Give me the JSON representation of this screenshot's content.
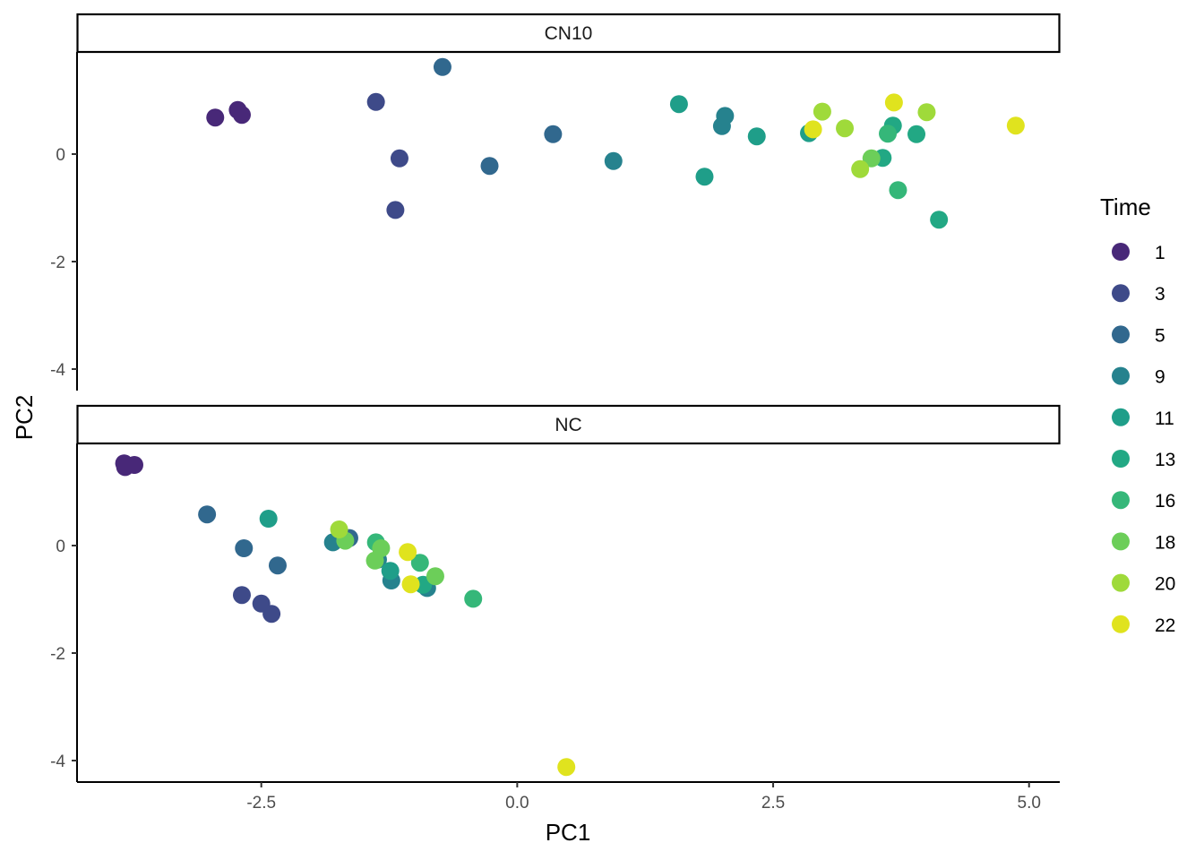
{
  "chart_data": {
    "type": "scatter",
    "xlabel": "PC1",
    "ylabel": "PC2",
    "xlim": [
      -4.3,
      5.3
    ],
    "ylim": [
      -4.4,
      1.9
    ],
    "x_ticks": [
      {
        "value": -2.5,
        "label": "-2.5"
      },
      {
        "value": 0,
        "label": "0.0"
      },
      {
        "value": 2.5,
        "label": "2.5"
      },
      {
        "value": 5,
        "label": "5.0"
      }
    ],
    "y_ticks": [
      {
        "value": 0,
        "label": "0"
      },
      {
        "value": -2,
        "label": "-2"
      },
      {
        "value": -4,
        "label": "-4"
      }
    ],
    "legend": {
      "title": "Time",
      "position": "right",
      "levels": [
        {
          "label": "1",
          "color": "#482878"
        },
        {
          "label": "3",
          "color": "#3E4A89"
        },
        {
          "label": "5",
          "color": "#31688E"
        },
        {
          "label": "9",
          "color": "#26828E"
        },
        {
          "label": "11",
          "color": "#1F9E89"
        },
        {
          "label": "13",
          "color": "#22A884"
        },
        {
          "label": "16",
          "color": "#35B779"
        },
        {
          "label": "18",
          "color": "#6CCE59"
        },
        {
          "label": "20",
          "color": "#9FDA3A"
        },
        {
          "label": "22",
          "color": "#E0E31E"
        }
      ]
    },
    "panels": [
      {
        "label": "CN10",
        "points": [
          {
            "x": -2.95,
            "y": 0.68,
            "time": "1"
          },
          {
            "x": -2.73,
            "y": 0.82,
            "time": "1"
          },
          {
            "x": -2.69,
            "y": 0.73,
            "time": "1"
          },
          {
            "x": -1.38,
            "y": 0.97,
            "time": "3"
          },
          {
            "x": -1.15,
            "y": -0.08,
            "time": "3"
          },
          {
            "x": -1.19,
            "y": -1.04,
            "time": "3"
          },
          {
            "x": -0.73,
            "y": 1.62,
            "time": "5"
          },
          {
            "x": -0.27,
            "y": -0.22,
            "time": "5"
          },
          {
            "x": 0.35,
            "y": 0.37,
            "time": "5"
          },
          {
            "x": 0.94,
            "y": -0.13,
            "time": "9"
          },
          {
            "x": 2.0,
            "y": 0.52,
            "time": "9"
          },
          {
            "x": 2.03,
            "y": 0.71,
            "time": "9"
          },
          {
            "x": 1.58,
            "y": 0.93,
            "time": "11"
          },
          {
            "x": 2.34,
            "y": 0.33,
            "time": "11"
          },
          {
            "x": 1.83,
            "y": -0.42,
            "time": "11"
          },
          {
            "x": 2.85,
            "y": 0.39,
            "time": "11"
          },
          {
            "x": 3.57,
            "y": -0.07,
            "time": "13"
          },
          {
            "x": 3.67,
            "y": 0.53,
            "time": "13"
          },
          {
            "x": 3.9,
            "y": 0.37,
            "time": "13"
          },
          {
            "x": 4.12,
            "y": -1.22,
            "time": "13"
          },
          {
            "x": 3.72,
            "y": -0.67,
            "time": "16"
          },
          {
            "x": 3.62,
            "y": 0.38,
            "time": "16"
          },
          {
            "x": 3.46,
            "y": -0.08,
            "time": "18"
          },
          {
            "x": 2.98,
            "y": 0.79,
            "time": "20"
          },
          {
            "x": 3.2,
            "y": 0.48,
            "time": "20"
          },
          {
            "x": 3.35,
            "y": -0.28,
            "time": "20"
          },
          {
            "x": 4.0,
            "y": 0.78,
            "time": "20"
          },
          {
            "x": 2.89,
            "y": 0.46,
            "time": "22"
          },
          {
            "x": 3.68,
            "y": 0.96,
            "time": "22"
          },
          {
            "x": 4.87,
            "y": 0.53,
            "time": "22"
          }
        ]
      },
      {
        "label": "NC",
        "points": [
          {
            "x": -3.84,
            "y": 1.53,
            "time": "1"
          },
          {
            "x": -3.83,
            "y": 1.46,
            "time": "1"
          },
          {
            "x": -3.74,
            "y": 1.5,
            "time": "1"
          },
          {
            "x": -2.69,
            "y": -0.92,
            "time": "3"
          },
          {
            "x": -2.5,
            "y": -1.08,
            "time": "3"
          },
          {
            "x": -2.4,
            "y": -1.27,
            "time": "3"
          },
          {
            "x": -3.03,
            "y": 0.58,
            "time": "5"
          },
          {
            "x": -2.67,
            "y": -0.05,
            "time": "5"
          },
          {
            "x": -2.34,
            "y": -0.37,
            "time": "5"
          },
          {
            "x": -1.64,
            "y": 0.14,
            "time": "5"
          },
          {
            "x": -1.8,
            "y": 0.06,
            "time": "9"
          },
          {
            "x": -1.23,
            "y": -0.65,
            "time": "9"
          },
          {
            "x": -1.36,
            "y": -0.26,
            "time": "9"
          },
          {
            "x": -0.88,
            "y": -0.79,
            "time": "9"
          },
          {
            "x": -2.43,
            "y": 0.5,
            "time": "11"
          },
          {
            "x": -1.24,
            "y": -0.47,
            "time": "11"
          },
          {
            "x": -0.92,
            "y": -0.73,
            "time": "13"
          },
          {
            "x": -0.95,
            "y": -0.32,
            "time": "16"
          },
          {
            "x": -0.43,
            "y": -0.99,
            "time": "16"
          },
          {
            "x": -1.38,
            "y": 0.06,
            "time": "16"
          },
          {
            "x": -1.68,
            "y": 0.09,
            "time": "18"
          },
          {
            "x": -1.39,
            "y": -0.28,
            "time": "18"
          },
          {
            "x": -1.33,
            "y": -0.05,
            "time": "18"
          },
          {
            "x": -0.8,
            "y": -0.57,
            "time": "18"
          },
          {
            "x": -1.74,
            "y": 0.3,
            "time": "20"
          },
          {
            "x": -1.07,
            "y": -0.12,
            "time": "22"
          },
          {
            "x": -1.04,
            "y": -0.72,
            "time": "22"
          },
          {
            "x": 0.48,
            "y": -4.12,
            "time": "22"
          }
        ]
      }
    ]
  }
}
